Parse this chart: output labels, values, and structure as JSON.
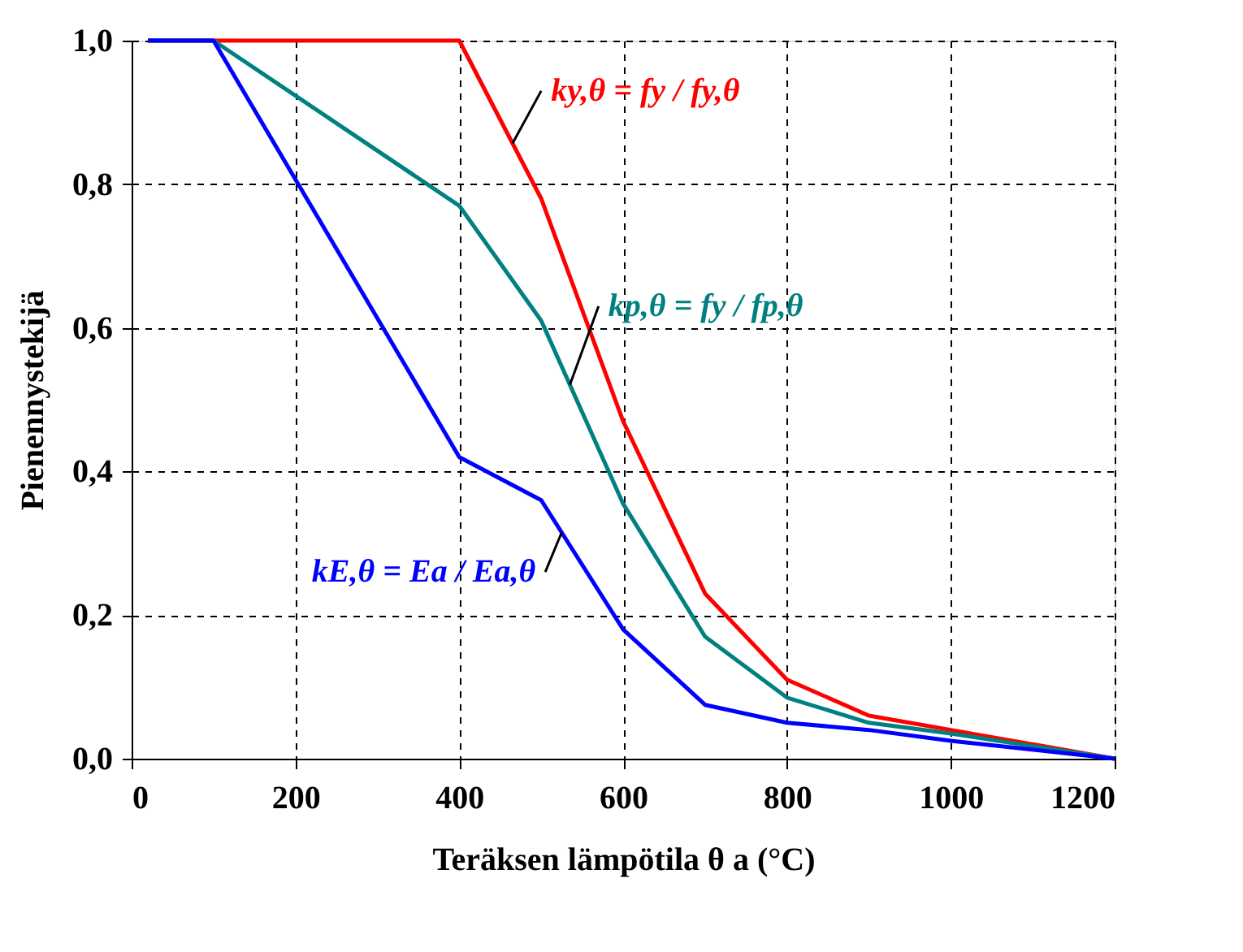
{
  "chart_data": {
    "type": "line",
    "xlabel": "Teräksen lämpötila θ a (°C)",
    "ylabel": "Pienennystekijä",
    "xlim": [
      0,
      1200
    ],
    "xticks": [
      0,
      200,
      400,
      600,
      800,
      1000,
      1200
    ],
    "ylim": [
      0,
      1
    ],
    "yticks": [
      {
        "value": 0,
        "label": "0,0"
      },
      {
        "value": 0.2,
        "label": "0,2"
      },
      {
        "value": 0.4,
        "label": "0,4"
      },
      {
        "value": 0.6,
        "label": "0,6"
      },
      {
        "value": 0.8,
        "label": "0,8"
      },
      {
        "value": 1,
        "label": "1,0"
      }
    ],
    "grid": true,
    "line_style": "solid",
    "marker": "none",
    "series": [
      {
        "name": "ky,θ = fy / fy,θ",
        "color": "#ff0000",
        "x": [
          20,
          100,
          400,
          500,
          600,
          700,
          800,
          900,
          1000,
          1200
        ],
        "values": [
          1,
          1,
          1,
          0.78,
          0.47,
          0.23,
          0.11,
          0.06,
          0.04,
          0
        ]
      },
      {
        "name": "kp,θ = fy / fp,θ",
        "color": "#008080",
        "x": [
          20,
          100,
          400,
          500,
          600,
          700,
          800,
          900,
          1000,
          1200
        ],
        "values": [
          1,
          1,
          0.77,
          0.61,
          0.355,
          0.17,
          0.085,
          0.05,
          0.035,
          0
        ]
      },
      {
        "name": "kE,θ = Ea / Ea,θ",
        "color": "#0000ff",
        "x": [
          20,
          100,
          400,
          500,
          600,
          700,
          800,
          900,
          1000,
          1200
        ],
        "values": [
          1,
          1,
          0.42,
          0.36,
          0.18,
          0.075,
          0.05,
          0.04,
          0.025,
          0
        ]
      }
    ]
  }
}
